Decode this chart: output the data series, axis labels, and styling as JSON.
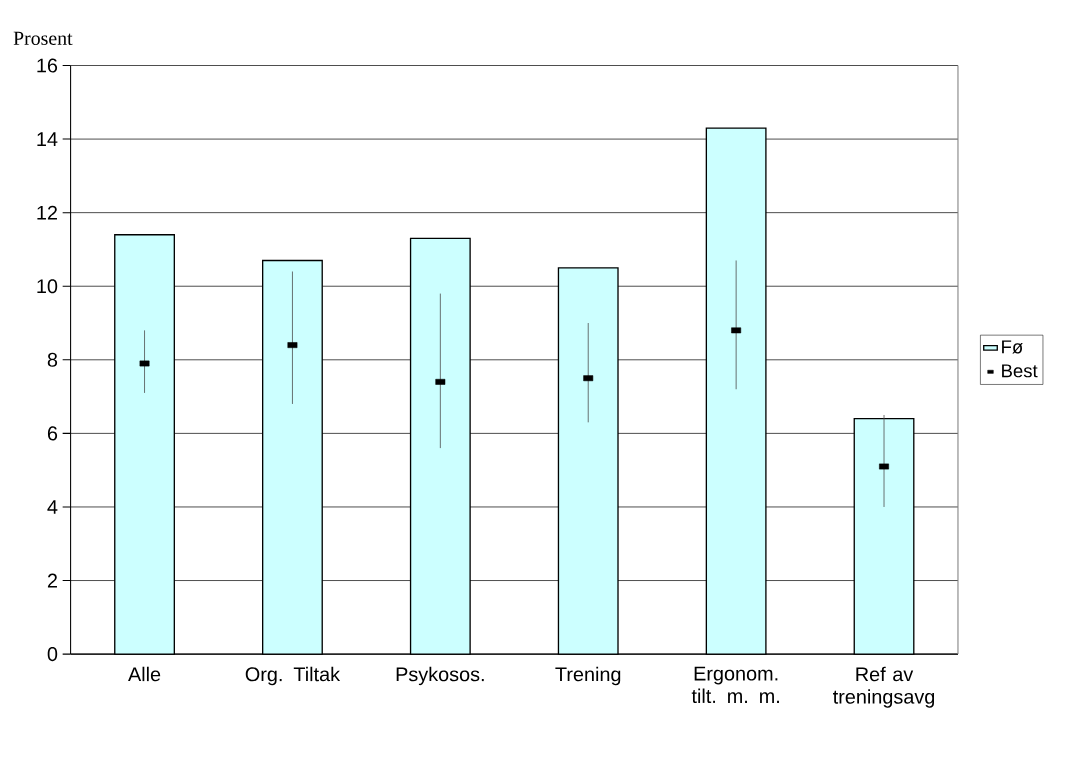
{
  "chart_data": {
    "type": "bar",
    "ylabel": "Prosent",
    "categories": [
      "Alle",
      "Org. Tiltak",
      "Psykosos.",
      "Trening",
      "Ergonom. tilt. m. m.",
      "Ref av treningsavg"
    ],
    "series": [
      {
        "name": "Fø",
        "color": "#ccffff",
        "values": [
          11.4,
          10.7,
          11.3,
          10.5,
          14.3,
          6.4
        ]
      },
      {
        "name": "Best",
        "type": "scatter",
        "color": "#000000",
        "marker": "square",
        "values": [
          7.9,
          8.4,
          7.4,
          7.5,
          8.8,
          5.1
        ],
        "errors": [
          [
            7.1,
            8.8
          ],
          [
            6.8,
            10.4
          ],
          [
            5.6,
            9.8
          ],
          [
            6.3,
            9.0
          ],
          [
            7.2,
            10.7
          ],
          [
            4.0,
            6.5
          ]
        ]
      }
    ],
    "ylim": [
      0,
      16
    ],
    "yticks": [
      0,
      2,
      4,
      6,
      8,
      10,
      12,
      14,
      16
    ],
    "grid": "y",
    "legend": "right"
  }
}
